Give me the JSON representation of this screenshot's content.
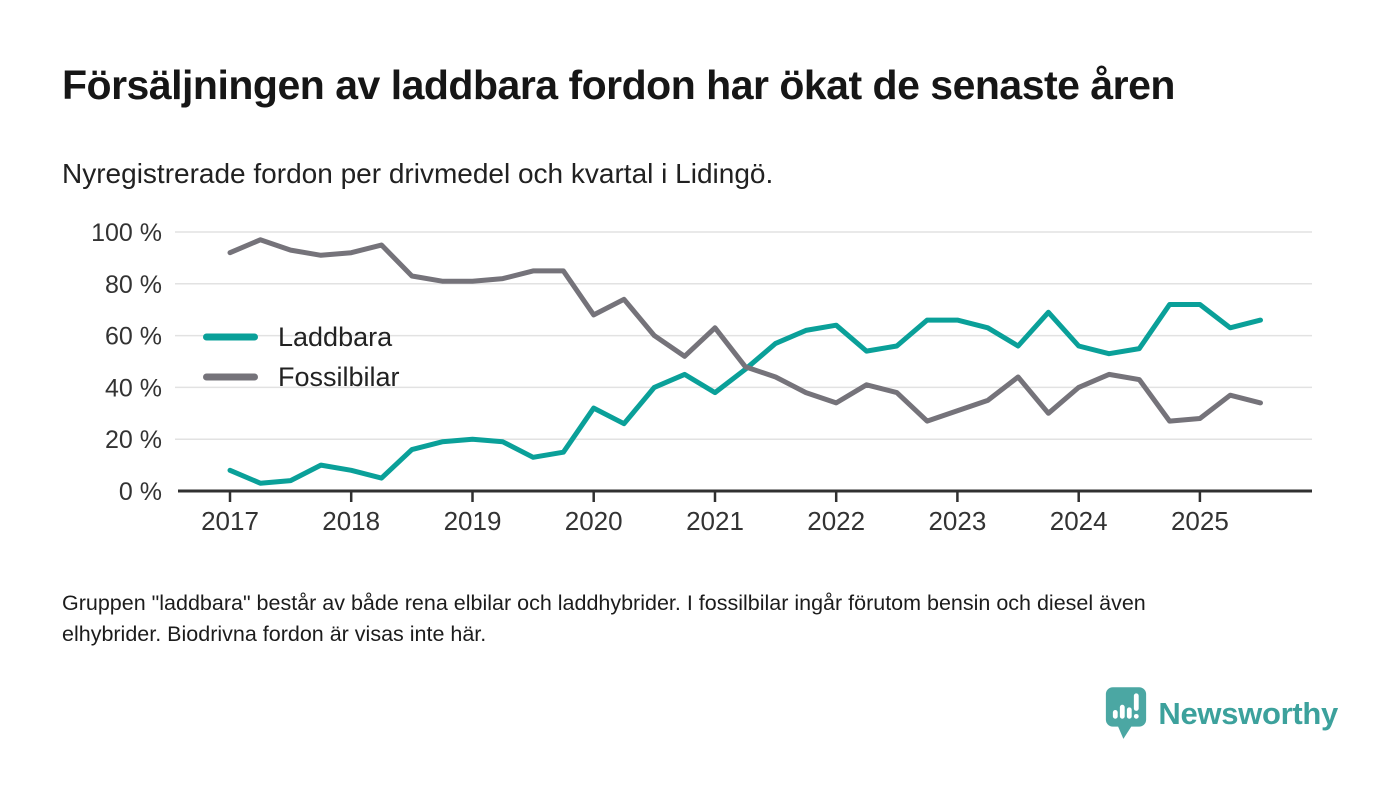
{
  "header": {
    "title": "Försäljningen av laddbara fordon har ökat de senaste åren",
    "subtitle": "Nyregistrerade fordon per drivmedel och kvartal i Lidingö."
  },
  "chart_data": {
    "type": "line",
    "title": "Försäljningen av laddbara fordon har ökat de senaste åren",
    "subtitle": "Nyregistrerade fordon per drivmedel och kvartal i Lidingö.",
    "xlabel": "",
    "ylabel": "",
    "ylim": [
      0,
      100
    ],
    "grid": "horizontal",
    "legend_position": "inside-left",
    "yticks": [
      0,
      20,
      40,
      60,
      80,
      100
    ],
    "ytick_labels": [
      "0 %",
      "20 %",
      "40 %",
      "60 %",
      "80 %",
      "100 %"
    ],
    "xtick_labels": [
      "2017",
      "2018",
      "2019",
      "2020",
      "2021",
      "2022",
      "2023",
      "2024",
      "2025"
    ],
    "categories": [
      "2017 Q1",
      "2017 Q2",
      "2017 Q3",
      "2017 Q4",
      "2018 Q1",
      "2018 Q2",
      "2018 Q3",
      "2018 Q4",
      "2019 Q1",
      "2019 Q2",
      "2019 Q3",
      "2019 Q4",
      "2020 Q1",
      "2020 Q2",
      "2020 Q3",
      "2020 Q4",
      "2021 Q1",
      "2021 Q2",
      "2021 Q3",
      "2021 Q4",
      "2022 Q1",
      "2022 Q2",
      "2022 Q3",
      "2022 Q4",
      "2023 Q1",
      "2023 Q2",
      "2023 Q3",
      "2023 Q4",
      "2024 Q1",
      "2024 Q2",
      "2024 Q3",
      "2024 Q4",
      "2025 Q1",
      "2025 Q2",
      "2025 Q3"
    ],
    "series": [
      {
        "name": "Laddbara",
        "color": "#0aa099",
        "values": [
          8,
          3,
          4,
          10,
          8,
          5,
          16,
          19,
          20,
          19,
          13,
          15,
          32,
          26,
          40,
          45,
          38,
          47,
          57,
          62,
          64,
          54,
          56,
          66,
          66,
          63,
          56,
          69,
          56,
          53,
          55,
          72,
          72,
          63,
          66
        ]
      },
      {
        "name": "Fossilbilar",
        "color": "#75737a",
        "values": [
          92,
          97,
          93,
          91,
          92,
          95,
          83,
          81,
          81,
          82,
          85,
          85,
          68,
          74,
          60,
          52,
          63,
          48,
          44,
          38,
          34,
          41,
          38,
          27,
          31,
          35,
          44,
          30,
          40,
          45,
          43,
          27,
          28,
          37,
          34
        ]
      }
    ]
  },
  "footnote": {
    "lines": [
      "Gruppen \"laddbara\" består av både rena elbilar och laddhybrider. I fossilbilar ingår förutom bensin och diesel även",
      "elhybrider. Biodrivna fordon är visas inte här."
    ]
  },
  "logo": {
    "text": "Newsworthy"
  },
  "colors": {
    "accent_teal": "#0aa099",
    "neutral_gray": "#75737a",
    "grid": "#e2e2e2",
    "axis": "#303030",
    "logo_teal": "#4ba7a3",
    "logo_text_teal": "#3ca19c"
  }
}
